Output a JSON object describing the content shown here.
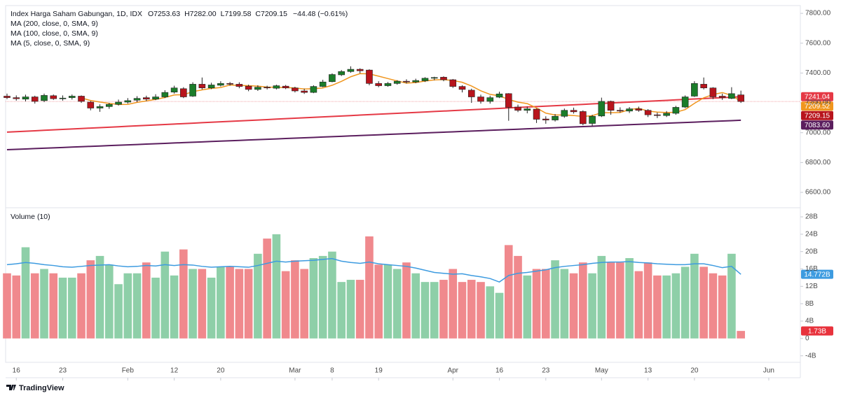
{
  "chart_data": {
    "type": "candlestick",
    "title": "Index Harga Saham Gabungan, 1D, IDX",
    "ohlc_labels": [
      "O7253.63",
      "H7282.00",
      "L7199.58",
      "C7209.15"
    ],
    "change_label": "−44.48 (−0.61%)",
    "xlim": [
      -0.15,
      85.4
    ],
    "xticks": [
      {
        "value": 1,
        "label": "16"
      },
      {
        "value": 6,
        "label": "23"
      },
      {
        "value": 13,
        "label": "Feb"
      },
      {
        "value": 18,
        "label": "12"
      },
      {
        "value": 23,
        "label": "20"
      },
      {
        "value": 31,
        "label": "Mar"
      },
      {
        "value": 35,
        "label": "8"
      },
      {
        "value": 40,
        "label": "19"
      },
      {
        "value": 48,
        "label": "Apr"
      },
      {
        "value": 53,
        "label": "16"
      },
      {
        "value": 58,
        "label": "23"
      },
      {
        "value": 64,
        "label": "May"
      },
      {
        "value": 69,
        "label": "13"
      },
      {
        "value": 74,
        "label": "20"
      },
      {
        "value": 82,
        "label": "Jun"
      }
    ],
    "ylim": [
      6497,
      7852
    ],
    "yticks": [
      {
        "value": 6600,
        "label": "6600.00"
      },
      {
        "value": 6800,
        "label": "6800.00"
      },
      {
        "value": 7000,
        "label": "7000.00"
      },
      {
        "value": 7200,
        "label": "7200.00"
      },
      {
        "value": 7400,
        "label": "7400.00"
      },
      {
        "value": 7600,
        "label": "7600.00"
      },
      {
        "value": 7800,
        "label": "7800.00"
      }
    ],
    "up_color": "#1b7d2a",
    "down_color": "#b8141c",
    "open": [
      7245,
      7235,
      7225,
      7240,
      7215,
      7248,
      7228,
      7235,
      7245,
      7205,
      7165,
      7175,
      7190,
      7205,
      7218,
      7235,
      7225,
      7240,
      7272,
      7295,
      7245,
      7325,
      7300,
      7318,
      7330,
      7325,
      7312,
      7290,
      7305,
      7298,
      7312,
      7300,
      7280,
      7270,
      7310,
      7342,
      7388,
      7410,
      7425,
      7420,
      7330,
      7315,
      7330,
      7345,
      7340,
      7348,
      7365,
      7372,
      7355,
      7310,
      7285,
      7240,
      7210,
      7238,
      7262,
      7172,
      7150,
      7158,
      7092,
      7085,
      7110,
      7150,
      7142,
      7062,
      7112,
      7210,
      7150,
      7145,
      7160,
      7150,
      7120,
      7115,
      7130,
      7172,
      7245,
      7325,
      7300,
      7245,
      7230,
      7253.63
    ],
    "high": [
      7262,
      7250,
      7255,
      7248,
      7262,
      7256,
      7250,
      7256,
      7250,
      7212,
      7190,
      7200,
      7222,
      7232,
      7245,
      7248,
      7258,
      7285,
      7315,
      7305,
      7338,
      7370,
      7335,
      7345,
      7340,
      7338,
      7322,
      7318,
      7315,
      7322,
      7320,
      7308,
      7295,
      7318,
      7355,
      7398,
      7420,
      7445,
      7432,
      7425,
      7345,
      7340,
      7352,
      7358,
      7362,
      7372,
      7375,
      7378,
      7360,
      7318,
      7295,
      7255,
      7248,
      7275,
      7265,
      7188,
      7175,
      7162,
      7110,
      7125,
      7162,
      7168,
      7150,
      7120,
      7235,
      7215,
      7170,
      7172,
      7175,
      7158,
      7135,
      7145,
      7180,
      7250,
      7345,
      7370,
      7305,
      7262,
      7305,
      7282
    ],
    "low": [
      7225,
      7215,
      7210,
      7195,
      7205,
      7220,
      7215,
      7222,
      7200,
      7150,
      7140,
      7160,
      7182,
      7195,
      7205,
      7212,
      7218,
      7232,
      7262,
      7232,
      7240,
      7290,
      7292,
      7310,
      7315,
      7298,
      7278,
      7280,
      7290,
      7290,
      7292,
      7270,
      7260,
      7265,
      7305,
      7338,
      7380,
      7402,
      7398,
      7318,
      7305,
      7308,
      7322,
      7330,
      7332,
      7340,
      7352,
      7345,
      7300,
      7270,
      7200,
      7195,
      7195,
      7232,
      7080,
      7138,
      7130,
      7065,
      7060,
      7075,
      7100,
      7128,
      7050,
      7045,
      7105,
      7120,
      7135,
      7132,
      7140,
      7105,
      7098,
      7105,
      7120,
      7165,
      7240,
      7290,
      7225,
      7220,
      7225,
      7199.58
    ],
    "close": [
      7235,
      7228,
      7240,
      7210,
      7250,
      7228,
      7232,
      7245,
      7210,
      7165,
      7175,
      7190,
      7205,
      7215,
      7230,
      7225,
      7240,
      7270,
      7300,
      7240,
      7325,
      7300,
      7320,
      7330,
      7325,
      7310,
      7290,
      7305,
      7300,
      7315,
      7300,
      7280,
      7270,
      7310,
      7340,
      7390,
      7410,
      7425,
      7415,
      7330,
      7315,
      7330,
      7345,
      7340,
      7350,
      7365,
      7370,
      7355,
      7310,
      7290,
      7240,
      7210,
      7235,
      7260,
      7170,
      7150,
      7160,
      7090,
      7085,
      7110,
      7150,
      7140,
      7060,
      7110,
      7210,
      7150,
      7145,
      7160,
      7150,
      7120,
      7115,
      7130,
      7170,
      7240,
      7330,
      7300,
      7240,
      7235,
      7262,
      7209.15
    ],
    "overlays": [
      {
        "name": "MA (200, close, 0, SMA, 9)",
        "color": "#5b1e5e",
        "last_label": "7083.60",
        "values": [
          6886,
          6888.5,
          6891,
          6893.5,
          6896,
          6898.5,
          6901,
          6903.5,
          6906,
          6908.5,
          6911,
          6913.5,
          6916,
          6918.5,
          6921,
          6923.5,
          6926,
          6928.5,
          6931,
          6933.5,
          6936,
          6938.5,
          6941,
          6943.5,
          6946,
          6948.5,
          6951,
          6953.5,
          6956,
          6958.5,
          6961,
          6963.5,
          6966,
          6968.5,
          6971,
          6973.5,
          6976,
          6978.5,
          6981,
          6983.5,
          6986,
          6988.5,
          6991,
          6993.5,
          6996,
          6998.5,
          7001,
          7003.5,
          7006,
          7008.5,
          7011,
          7013.5,
          7016,
          7018.5,
          7021,
          7023.5,
          7026,
          7028.5,
          7031,
          7033.5,
          7036,
          7038.5,
          7041,
          7043.5,
          7046,
          7048.5,
          7051,
          7053.5,
          7056,
          7058.5,
          7061,
          7063.5,
          7066,
          7068.5,
          7071,
          7073.5,
          7076,
          7078.5,
          7081,
          7083.6
        ]
      },
      {
        "name": "MA (100, close, 0, SMA, 9)",
        "color": "#e53945",
        "values": [
          7004,
          7007,
          7010,
          7013,
          7016,
          7019,
          7022,
          7025,
          7028,
          7031,
          7034,
          7037,
          7040,
          7043,
          7046,
          7049,
          7052,
          7055,
          7058,
          7061,
          7064,
          7067,
          7070,
          7073,
          7076,
          7079,
          7082,
          7085,
          7088,
          7091,
          7094,
          7097,
          7100,
          7103,
          7106,
          7109,
          7112,
          7115,
          7118,
          7121,
          7124,
          7127,
          7130,
          7133,
          7136,
          7139,
          7142,
          7145,
          7148,
          7151,
          7154,
          7157,
          7160,
          7163,
          7166,
          7169,
          7172,
          7175,
          7178,
          7181,
          7184,
          7187,
          7190,
          7193,
          7196,
          7199,
          7202,
          7205,
          7208,
          7211,
          7214,
          7217,
          7220,
          7223,
          7226,
          7229,
          7232,
          7235,
          7238,
          7241.04
        ]
      },
      {
        "name": "MA (5, close, 0, SMA, 9)",
        "color": "#f0961e",
        "values": [
          null,
          null,
          null,
          null,
          null,
          null,
          null,
          null,
          7233,
          7216,
          7205.4,
          7197,
          7189,
          7190,
          7203,
          7213,
          7223,
          7236,
          7253,
          7255,
          7275,
          7287,
          7297,
          7303,
          7320,
          7317,
          7315,
          7312,
          7306,
          7304,
          7302,
          7300,
          7293,
          7295,
          7300,
          7318,
          7344,
          7375,
          7396,
          7394,
          7379,
          7363,
          7347,
          7332,
          7336,
          7346,
          7354,
          7356,
          7350,
          7338,
          7313,
          7281,
          7257,
          7247,
          7223,
          7205,
          7195,
          7166,
          7131,
          7119,
          7119,
          7115,
          7109,
          7114,
          7134,
          7134,
          7135,
          7155,
          7163,
          7145,
          7138,
          7135,
          7137,
          7155,
          7197,
          7234,
          7256,
          7269,
          7250,
          7209.52
        ]
      }
    ],
    "volume": {
      "name": "Volume (10)",
      "ylim": [
        -5.5,
        30.1
      ],
      "yticks": [
        {
          "value": -4,
          "label": "-4B"
        },
        0,
        {
          "value": 4,
          "label": "4B"
        },
        {
          "value": 8,
          "label": "8B"
        },
        {
          "value": 12,
          "label": "12B"
        },
        {
          "value": 16,
          "label": "16B"
        },
        {
          "value": 20,
          "label": "20B"
        },
        {
          "value": 24,
          "label": "24B"
        },
        {
          "value": 28,
          "label": "28B"
        }
      ],
      "up_color": "#8ecfa8",
      "down_color": "#f0898d",
      "last_label": "1.73B",
      "values": [
        15,
        14.5,
        21,
        15,
        16,
        15,
        14,
        14,
        15,
        18,
        19,
        17,
        12.5,
        15,
        15,
        17.5,
        14,
        20,
        14.5,
        20.5,
        16,
        16,
        14,
        16.5,
        16.5,
        16,
        16,
        19.5,
        23,
        24,
        15.5,
        18,
        16,
        18.5,
        19,
        20,
        13,
        13.5,
        13.5,
        23.5,
        17,
        17,
        16,
        17.5,
        15,
        13,
        13,
        13.5,
        16,
        13,
        13.5,
        13,
        12,
        10.5,
        21.5,
        19,
        14.5,
        16,
        16,
        18,
        16,
        15,
        17.5,
        15,
        19,
        17.5,
        17.5,
        18.5,
        15.5,
        17.5,
        14.5,
        14.5,
        15,
        16.5,
        19.5,
        16.5,
        15,
        14.5,
        19.5,
        1.73
      ],
      "ma": {
        "color": "#3d9be0",
        "last_label": "14.772B",
        "values": [
          17,
          17.2,
          17.5,
          17.3,
          17,
          16.8,
          16.5,
          16.4,
          16.6,
          16.8,
          16.9,
          17,
          16.7,
          16.5,
          16.6,
          16.8,
          16.7,
          17,
          16.8,
          17,
          16.9,
          16.6,
          16.4,
          16.5,
          16.6,
          16.5,
          16.4,
          16.8,
          17.3,
          17.8,
          17.6,
          17.8,
          17.9,
          18,
          18.2,
          18.4,
          17.8,
          17.5,
          17.3,
          17.6,
          17.2,
          17,
          16.8,
          16.6,
          16.2,
          15.7,
          15.2,
          15,
          14.8,
          14.9,
          14.5,
          14.2,
          13.8,
          13,
          14.5,
          15,
          15.2,
          15.5,
          15.8,
          16.3,
          16.6,
          16.8,
          17,
          17.3,
          17.5,
          17.6,
          17.6,
          17.7,
          17.5,
          17.4,
          17.2,
          17.1,
          17,
          17,
          17.2,
          17.2,
          16.8,
          16.3,
          16.6,
          14.772
        ]
      }
    }
  },
  "footer": {
    "brand": "TradingView"
  }
}
